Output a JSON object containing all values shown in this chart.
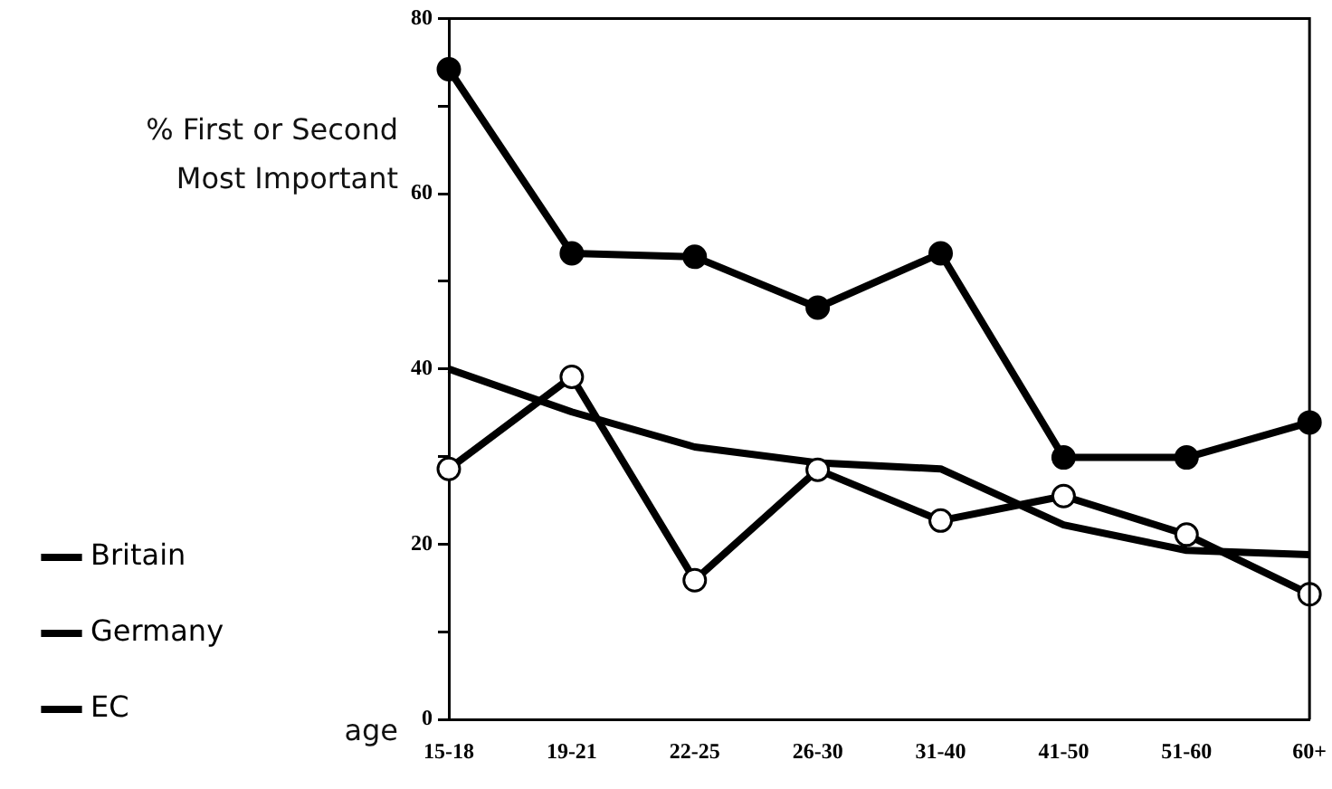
{
  "chart_data": {
    "type": "line",
    "ylabel": "% First or Second Most Important",
    "xlabel": "age",
    "categories": [
      "15-18",
      "19-21",
      "22-25",
      "26-30",
      "31-40",
      "41-50",
      "51-60",
      "60+"
    ],
    "series": [
      {
        "name": "Britain",
        "color": "#000000",
        "marker": "circle",
        "values": [
          28.6,
          39.1,
          15.9,
          28.5,
          22.7,
          25.5,
          21.1,
          14.3
        ]
      },
      {
        "name": "Germany",
        "color": "#000000",
        "marker": "circle",
        "values": [
          74.2,
          53.2,
          52.8,
          47,
          53.2,
          29.9,
          29.9,
          33.9
        ]
      },
      {
        "name": "EC",
        "color": "#000000",
        "marker": "none",
        "values": [
          40,
          35.1,
          31.1,
          29.3,
          28.6,
          22.2,
          19.3,
          18.8
        ]
      }
    ],
    "ylim": [
      0,
      80
    ],
    "yticks": [
      0,
      {
        "value": 10,
        "label": null
      },
      20,
      {
        "value": 30,
        "label": null
      },
      40,
      {
        "value": 50,
        "label": null
      },
      60,
      {
        "value": 70,
        "label": null
      },
      80
    ],
    "grid": false,
    "legend": "left"
  }
}
